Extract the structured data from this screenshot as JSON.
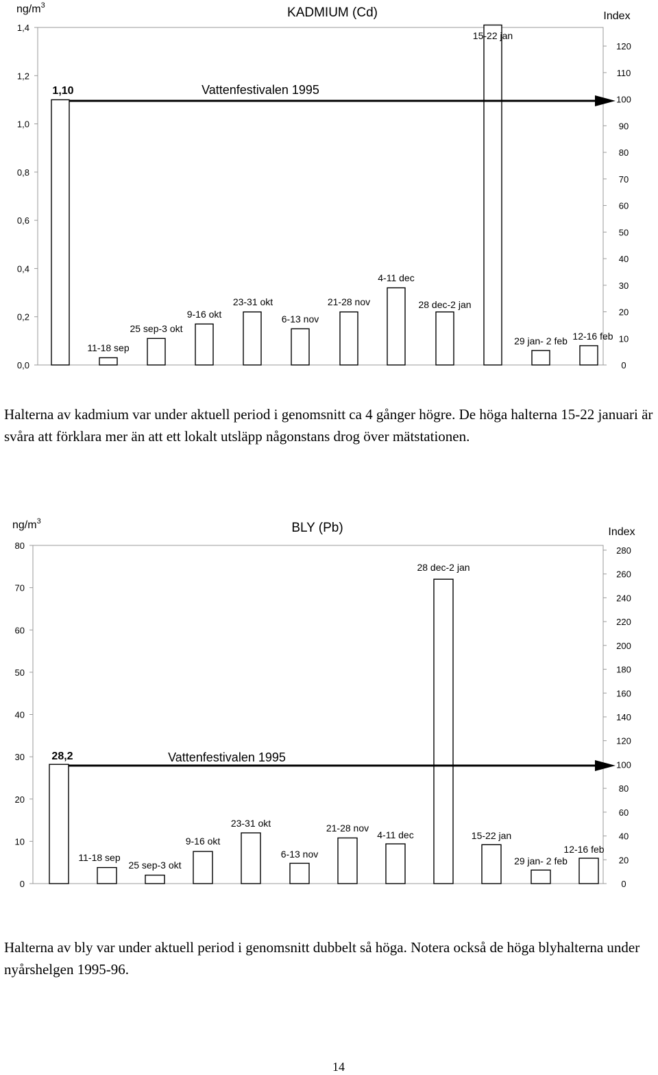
{
  "chart_data": [
    {
      "id": "cadmium",
      "type": "bar",
      "title": "KADMIUM (Cd)",
      "ylabel": "ng/m3",
      "y2label": "Index",
      "ylim": [
        0,
        1.4
      ],
      "yticks": [
        "0,0",
        "0,2",
        "0,4",
        "0,6",
        "0,8",
        "1,0",
        "1,2",
        "1,4"
      ],
      "y2lim": [
        0,
        127
      ],
      "y2ticks": [
        "0",
        "10",
        "20",
        "30",
        "40",
        "50",
        "60",
        "70",
        "80",
        "90",
        "100",
        "110",
        "120"
      ],
      "categories": [
        "Vattenfestivalen 1995",
        "11-18 sep",
        "25 sep-3 okt",
        "9-16 okt",
        "23-31 okt",
        "6-13 nov",
        "21-28 nov",
        "4-11 dec",
        "28 dec-2 jan",
        "15-22 jan",
        "29 jan- 2 feb",
        "12-16 feb"
      ],
      "values": [
        1.1,
        0.03,
        0.11,
        0.17,
        0.22,
        0.15,
        0.22,
        0.32,
        0.22,
        1.41,
        0.06,
        0.08
      ],
      "reference_value": 1.1,
      "reference_label": "1,10",
      "reference_line_label": "Vattenfestivalen 1995",
      "grid": false
    },
    {
      "id": "lead",
      "type": "bar",
      "title": "BLY (Pb)",
      "ylabel": "ng/m3",
      "y2label": "Index",
      "ylim": [
        0,
        80
      ],
      "yticks": [
        "0",
        "10",
        "20",
        "30",
        "40",
        "50",
        "60",
        "70",
        "80"
      ],
      "y2lim": [
        0,
        284
      ],
      "y2ticks": [
        "0",
        "20",
        "40",
        "60",
        "80",
        "100",
        "120",
        "140",
        "160",
        "180",
        "200",
        "220",
        "240",
        "260",
        "280"
      ],
      "categories": [
        "Vattenfestivalen 1995",
        "11-18 sep",
        "25 sep-3 okt",
        "9-16 okt",
        "23-31 okt",
        "6-13 nov",
        "21-28 nov",
        "4-11 dec",
        "28 dec-2 jan",
        "15-22 jan",
        "29 jan- 2 feb",
        "12-16 feb"
      ],
      "values": [
        28.2,
        3.8,
        2.0,
        7.6,
        12.0,
        4.8,
        10.8,
        9.4,
        72.0,
        9.2,
        3.2,
        6.0
      ],
      "reference_value": 28.2,
      "reference_label": "28,2",
      "reference_line_label": "Vattenfestivalen 1995",
      "grid": false
    }
  ],
  "text": {
    "cadmium_paragraph": "Halterna av kadmium var under aktuell period i genomsnitt ca 4 gånger högre. De höga halterna 15-22 januari är svåra att förklara mer än att ett lokalt utsläpp någonstans drog över mätstationen.",
    "lead_paragraph": "Halterna av bly var under aktuell period i genomsnitt dubbelt så höga. Notera också de höga blyhalterna under nyårshelgen 1995-96.",
    "page_number": "14"
  }
}
